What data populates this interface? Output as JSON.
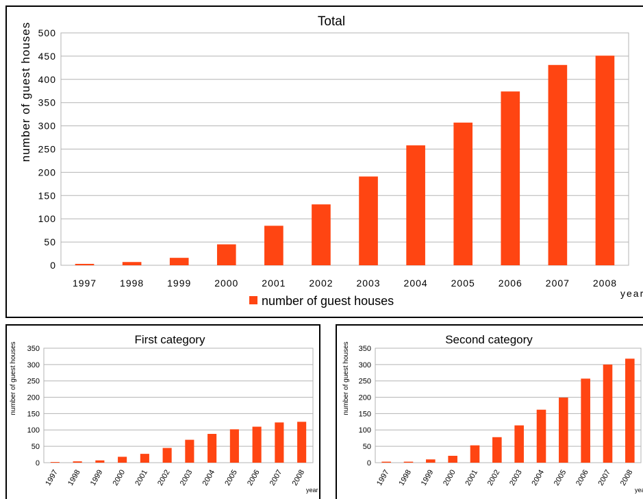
{
  "colors": {
    "bar": "#ff4512",
    "grid": "#b3b3b3"
  },
  "chart_data": [
    {
      "type": "bar",
      "title": "Total",
      "xlabel": "year",
      "ylabel": "number of guest houses",
      "legend": "bottom",
      "grid": true,
      "categories": [
        "1997",
        "1998",
        "1999",
        "2000",
        "2001",
        "2002",
        "2003",
        "2004",
        "2005",
        "2006",
        "2007",
        "2008"
      ],
      "series": [
        {
          "name": "number of guest houses",
          "values": [
            3,
            7,
            16,
            45,
            85,
            131,
            191,
            258,
            307,
            374,
            431,
            451
          ]
        }
      ],
      "ylim": [
        0,
        500
      ],
      "yticks": [
        0,
        50,
        100,
        150,
        200,
        250,
        300,
        350,
        400,
        450,
        500
      ]
    },
    {
      "type": "bar",
      "title": "First category",
      "xlabel": "year",
      "ylabel": "number of guest houses",
      "grid": true,
      "categories": [
        "1997",
        "1998",
        "1999",
        "2000",
        "2001",
        "2002",
        "2003",
        "2004",
        "2005",
        "2006",
        "2007",
        "2008"
      ],
      "series": [
        {
          "values": [
            2,
            4,
            7,
            18,
            27,
            45,
            70,
            88,
            102,
            110,
            123,
            125
          ]
        }
      ],
      "ylim": [
        0,
        350
      ],
      "yticks": [
        0,
        50,
        100,
        150,
        200,
        250,
        300,
        350
      ]
    },
    {
      "type": "bar",
      "title": "Second category",
      "xlabel": "year",
      "ylabel": "number of guest houses",
      "grid": true,
      "categories": [
        "1997",
        "1998",
        "1999",
        "2000",
        "2001",
        "2002",
        "2003",
        "2004",
        "2005",
        "2006",
        "2007",
        "2008"
      ],
      "series": [
        {
          "values": [
            3,
            3,
            10,
            21,
            53,
            78,
            114,
            162,
            199,
            257,
            300,
            318
          ]
        }
      ],
      "ylim": [
        0,
        350
      ],
      "yticks": [
        0,
        50,
        100,
        150,
        200,
        250,
        300,
        350
      ]
    }
  ]
}
